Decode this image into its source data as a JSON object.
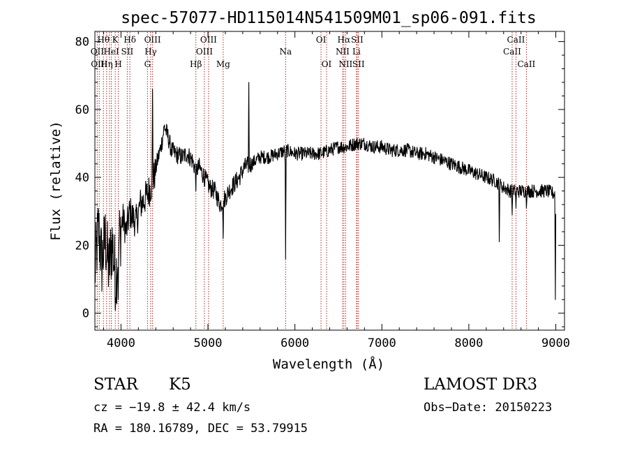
{
  "chart_data": {
    "type": "line",
    "title": "spec-57077-HD115014N541509M01_sp06-091.fits",
    "xlabel": "Wavelength (Å)",
    "ylabel": "Flux (relative)",
    "xlim": [
      3700,
      9100
    ],
    "ylim": [
      -5,
      83
    ],
    "xticks": [
      4000,
      5000,
      6000,
      7000,
      8000,
      9000
    ],
    "yticks": [
      0,
      20,
      40,
      60,
      80
    ],
    "grid": false,
    "line_color": "#000000",
    "marker_color": "#b22222",
    "lines": [
      {
        "wavelength": 3727,
        "label": "OII",
        "row": 1
      },
      {
        "wavelength": 3750,
        "label": "OIII",
        "row": 2
      },
      {
        "wavelength": 3798,
        "label": "Hθ",
        "row": 0
      },
      {
        "wavelength": 3835,
        "label": "Hη",
        "row": 2
      },
      {
        "wavelength": 3868,
        "label": "",
        "row": 1
      },
      {
        "wavelength": 3889,
        "label": "HeI",
        "row": 1
      },
      {
        "wavelength": 3934,
        "label": "K",
        "row": 0
      },
      {
        "wavelength": 3969,
        "label": "H",
        "row": 2
      },
      {
        "wavelength": 4072,
        "label": "SII",
        "row": 1
      },
      {
        "wavelength": 4102,
        "label": "Hδ",
        "row": 0
      },
      {
        "wavelength": 4305,
        "label": "G",
        "row": 2
      },
      {
        "wavelength": 4341,
        "label": "Hγ",
        "row": 1
      },
      {
        "wavelength": 4363,
        "label": "OIII",
        "row": 0
      },
      {
        "wavelength": 4861,
        "label": "Hβ",
        "row": 2
      },
      {
        "wavelength": 4959,
        "label": "OIII",
        "row": 1
      },
      {
        "wavelength": 5007,
        "label": "OIII",
        "row": 0
      },
      {
        "wavelength": 5175,
        "label": "Mg",
        "row": 2
      },
      {
        "wavelength": 5893,
        "label": "Na",
        "row": 1
      },
      {
        "wavelength": 6300,
        "label": "OI",
        "row": 0
      },
      {
        "wavelength": 6364,
        "label": "OI",
        "row": 2
      },
      {
        "wavelength": 6548,
        "label": "NII",
        "row": 1
      },
      {
        "wavelength": 6563,
        "label": "Hα",
        "row": 0
      },
      {
        "wavelength": 6583,
        "label": "NII",
        "row": 2
      },
      {
        "wavelength": 6708,
        "label": "Li",
        "row": 1
      },
      {
        "wavelength": 6716,
        "label": "SII",
        "row": 0
      },
      {
        "wavelength": 6731,
        "label": "SII",
        "row": 2
      },
      {
        "wavelength": 8498,
        "label": "CaII",
        "row": 1
      },
      {
        "wavelength": 8542,
        "label": "CaII",
        "row": 0
      },
      {
        "wavelength": 8662,
        "label": "CaII",
        "row": 2
      }
    ],
    "spectrum_anchors": [
      [
        3700,
        12
      ],
      [
        3740,
        25
      ],
      [
        3780,
        15
      ],
      [
        3820,
        22
      ],
      [
        3860,
        13
      ],
      [
        3900,
        21
      ],
      [
        3940,
        10
      ],
      [
        3980,
        22
      ],
      [
        4020,
        28
      ],
      [
        4060,
        24
      ],
      [
        4100,
        30
      ],
      [
        4140,
        28
      ],
      [
        4180,
        27
      ],
      [
        4220,
        32
      ],
      [
        4260,
        33
      ],
      [
        4300,
        35
      ],
      [
        4340,
        37
      ],
      [
        4380,
        40
      ],
      [
        4420,
        45
      ],
      [
        4460,
        49
      ],
      [
        4500,
        55
      ],
      [
        4540,
        52
      ],
      [
        4580,
        48
      ],
      [
        4620,
        47
      ],
      [
        4700,
        46
      ],
      [
        4760,
        47
      ],
      [
        4820,
        45
      ],
      [
        4860,
        42
      ],
      [
        4900,
        43
      ],
      [
        4960,
        40
      ],
      [
        5020,
        37
      ],
      [
        5080,
        36
      ],
      [
        5140,
        32
      ],
      [
        5200,
        34
      ],
      [
        5240,
        36
      ],
      [
        5300,
        38
      ],
      [
        5360,
        40
      ],
      [
        5420,
        43
      ],
      [
        5500,
        44
      ],
      [
        5600,
        46
      ],
      [
        5700,
        46
      ],
      [
        5800,
        47
      ],
      [
        5900,
        48
      ],
      [
        6000,
        47
      ],
      [
        6100,
        47
      ],
      [
        6200,
        47
      ],
      [
        6300,
        47
      ],
      [
        6400,
        48
      ],
      [
        6500,
        49
      ],
      [
        6600,
        49
      ],
      [
        6700,
        50
      ],
      [
        6800,
        50
      ],
      [
        6900,
        49
      ],
      [
        7000,
        49
      ],
      [
        7100,
        48
      ],
      [
        7200,
        48
      ],
      [
        7300,
        48
      ],
      [
        7400,
        47
      ],
      [
        7500,
        47
      ],
      [
        7600,
        46
      ],
      [
        7700,
        45
      ],
      [
        7800,
        44
      ],
      [
        7900,
        43
      ],
      [
        8000,
        42
      ],
      [
        8100,
        41
      ],
      [
        8200,
        40
      ],
      [
        8300,
        39
      ],
      [
        8400,
        37
      ],
      [
        8480,
        36
      ],
      [
        8600,
        36
      ],
      [
        8700,
        36
      ],
      [
        8800,
        36
      ],
      [
        8900,
        36
      ],
      [
        9000,
        35
      ]
    ],
    "spectrum_features": [
      {
        "wavelength": 3934,
        "flux": 1
      },
      {
        "wavelength": 3969,
        "flux": 4
      },
      {
        "wavelength": 4363,
        "flux": 66
      },
      {
        "wavelength": 4861,
        "flux": 36
      },
      {
        "wavelength": 5175,
        "flux": 22
      },
      {
        "wavelength": 5470,
        "flux": 68
      },
      {
        "wavelength": 5893,
        "flux": 16
      },
      {
        "wavelength": 8350,
        "flux": 21
      },
      {
        "wavelength": 8498,
        "flux": 29
      },
      {
        "wavelength": 8542,
        "flux": 31
      },
      {
        "wavelength": 8662,
        "flux": 31
      },
      {
        "wavelength": 8995,
        "flux": 4
      }
    ]
  },
  "info": {
    "object_class": "STAR",
    "subclass": "K5",
    "survey": "LAMOST DR3",
    "redshift": "cz = −19.8 ± 42.4 km/s",
    "obs_date": "Obs−Date: 20150223",
    "coords": "RA = 180.16789, DEC =  53.79915"
  }
}
